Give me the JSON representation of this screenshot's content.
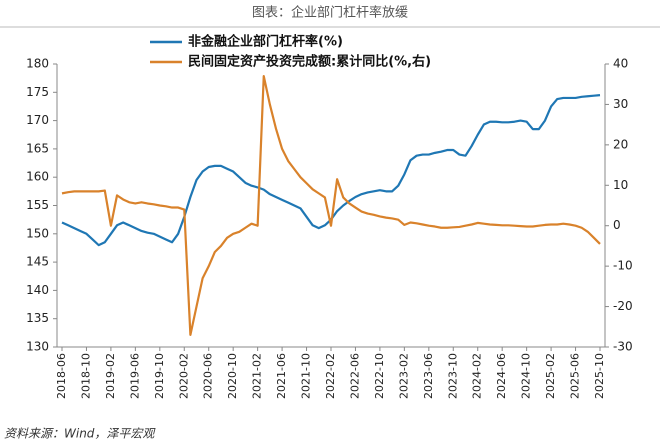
{
  "chart_data": {
    "type": "line",
    "title": "图表：企业部门杠杆率放缓",
    "source": "资料来源：Wind，泽平宏观",
    "categories": [
      "2018-06",
      null,
      null,
      null,
      "2018-10",
      null,
      null,
      null,
      "2019-02",
      null,
      null,
      null,
      "2019-06",
      null,
      null,
      null,
      "2019-10",
      null,
      null,
      null,
      "2020-02",
      null,
      null,
      null,
      "2020-06",
      null,
      null,
      null,
      "2020-10",
      null,
      null,
      null,
      "2021-02",
      null,
      null,
      null,
      "2021-06",
      null,
      null,
      null,
      "2021-10",
      null,
      null,
      null,
      "2022-02",
      null,
      null,
      null,
      "2022-06",
      null,
      null,
      null,
      "2022-10",
      null,
      null,
      null,
      "2023-02",
      null,
      null,
      null,
      "2023-06",
      null,
      null,
      null,
      "2023-10",
      null,
      null,
      null,
      "2024-02",
      null,
      null,
      null,
      "2024-06",
      null,
      null,
      null,
      "2024-10",
      null,
      null,
      null,
      "2025-02",
      null,
      null,
      null,
      "2025-06",
      null,
      null,
      null,
      "2025-10"
    ],
    "series": [
      {
        "name": "非金融企业部门杠杆率(%)",
        "color": "#1f77b4",
        "axis": "y",
        "values": [
          152,
          151.5,
          151,
          150.5,
          150,
          149,
          148,
          148.5,
          150,
          151.5,
          152,
          151.5,
          151,
          150.5,
          150.2,
          150,
          149.5,
          149,
          148.5,
          150,
          153,
          156.5,
          159.5,
          161,
          161.8,
          162,
          162,
          161.5,
          161,
          160,
          159,
          158.5,
          158.2,
          157.8,
          157,
          156.5,
          156,
          155.5,
          155,
          154.5,
          153,
          151.5,
          151,
          151.5,
          152.5,
          154,
          155,
          155.8,
          156.5,
          157,
          157.3,
          157.5,
          157.7,
          157.5,
          157.5,
          158.5,
          160.5,
          163,
          163.8,
          164,
          164,
          164.3,
          164.5,
          164.8,
          164.8,
          164,
          163.8,
          165.5,
          167.5,
          169.3,
          169.8,
          169.8,
          169.7,
          169.7,
          169.8,
          170,
          169.8,
          168.5,
          168.5,
          170,
          172.5,
          173.8,
          174,
          174,
          174,
          174.2,
          174.3,
          174.4,
          174.5
        ]
      },
      {
        "name": "民间固定资产投资完成额:累计同比(%,右)",
        "color": "#d9822b",
        "axis": "y2",
        "values": [
          8,
          8.3,
          8.5,
          8.5,
          8.5,
          8.5,
          8.5,
          8.7,
          0,
          7.5,
          6.5,
          5.8,
          5.5,
          5.8,
          5.5,
          5.3,
          5,
          4.8,
          4.5,
          4.5,
          4,
          -27,
          -20,
          -13,
          -10,
          -6.5,
          -5,
          -3,
          -2,
          -1.5,
          -0.5,
          0.5,
          0,
          37,
          30,
          24,
          19,
          16,
          14,
          12,
          10.5,
          9,
          8,
          7,
          0,
          11.5,
          7,
          5.5,
          4.5,
          3.5,
          3,
          2.7,
          2.3,
          2,
          1.8,
          1.5,
          0.2,
          0.8,
          0.6,
          0.3,
          0,
          -0.2,
          -0.5,
          -0.5,
          -0.4,
          -0.3,
          0,
          0.3,
          0.7,
          0.5,
          0.3,
          0.2,
          0.1,
          0.1,
          0,
          -0.1,
          -0.2,
          -0.2,
          0,
          0.2,
          0.3,
          0.3,
          0.5,
          0.3,
          0,
          -0.5,
          -1.5,
          -3,
          -4.5
        ]
      }
    ],
    "ylim": [
      130,
      180
    ],
    "yticks": [
      130,
      135,
      140,
      145,
      150,
      155,
      160,
      165,
      170,
      175,
      180
    ],
    "y2lim": [
      -30,
      40
    ],
    "y2ticks": [
      -30,
      -20,
      -10,
      0,
      10,
      20,
      30,
      40
    ],
    "legend": "upper left"
  }
}
